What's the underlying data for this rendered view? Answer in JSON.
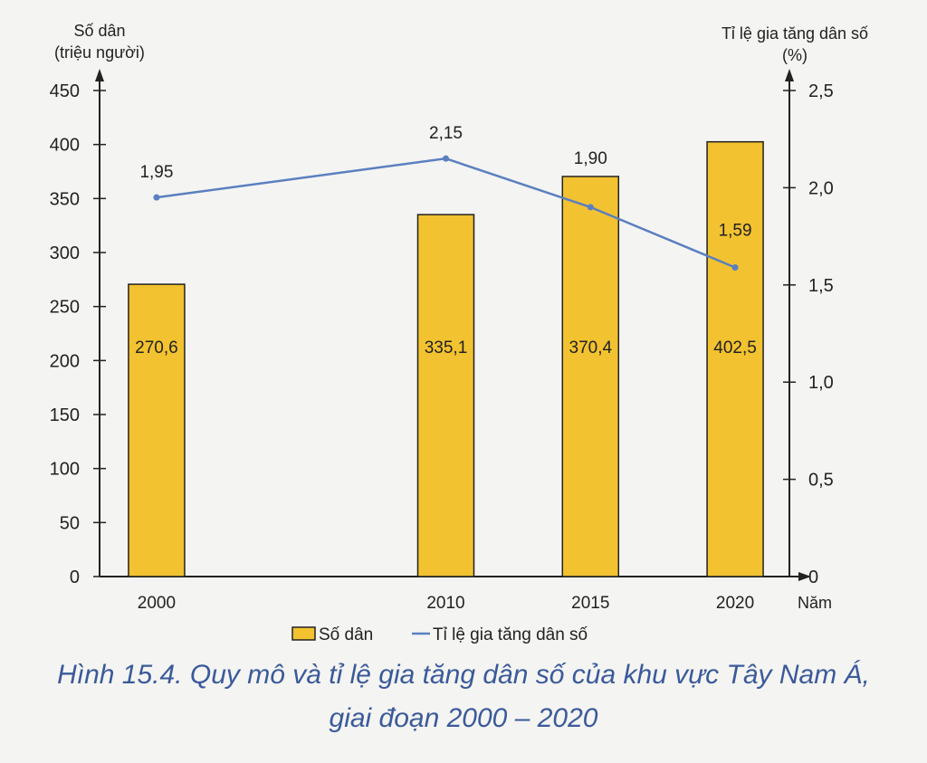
{
  "chart_data": {
    "type": "bar",
    "categories": [
      "2000",
      "2010",
      "2015",
      "2020"
    ],
    "x_numeric": [
      2000,
      2010,
      2015,
      2020
    ],
    "series": [
      {
        "name": "Số dân",
        "kind": "bar",
        "axis": "left",
        "values": [
          270.6,
          335.1,
          370.4,
          402.5
        ],
        "labels": [
          "270,6",
          "335,1",
          "370,4",
          "402,5"
        ],
        "color": "#f2c230"
      },
      {
        "name": "Tỉ lệ gia tăng dân số",
        "kind": "line",
        "axis": "right",
        "values": [
          1.95,
          2.15,
          1.9,
          1.59
        ],
        "labels": [
          "1,95",
          "2,15",
          "1,90",
          "1,59"
        ],
        "color": "#5b7fc0"
      }
    ],
    "left_axis": {
      "label_line1": "Số dân",
      "label_line2": "(triệu người)",
      "range": [
        0,
        450
      ],
      "ticks": [
        0,
        50,
        100,
        150,
        200,
        250,
        300,
        350,
        400,
        450
      ],
      "tick_labels": [
        "0",
        "50",
        "100",
        "150",
        "200",
        "250",
        "300",
        "350",
        "400",
        "450"
      ]
    },
    "right_axis": {
      "label_line1": "Tỉ lệ gia tăng dân số",
      "label_line2": "(%)",
      "range": [
        0,
        2.5
      ],
      "ticks": [
        0,
        0.5,
        1.0,
        1.5,
        2.0,
        2.5
      ],
      "tick_labels": [
        "0",
        "0,5",
        "1,0",
        "1,5",
        "2,0",
        "2,5"
      ]
    },
    "xlabel": "Năm",
    "legend": {
      "position": "bottom",
      "items": [
        "Số dân",
        "Tỉ lệ gia tăng dân số"
      ]
    },
    "grid": false
  },
  "caption": {
    "line1": "Hình 15.4. Quy mô và tỉ lệ gia tăng dân số của khu vực Tây Nam Á,",
    "line2": "giai đoạn 2000 – 2020"
  }
}
